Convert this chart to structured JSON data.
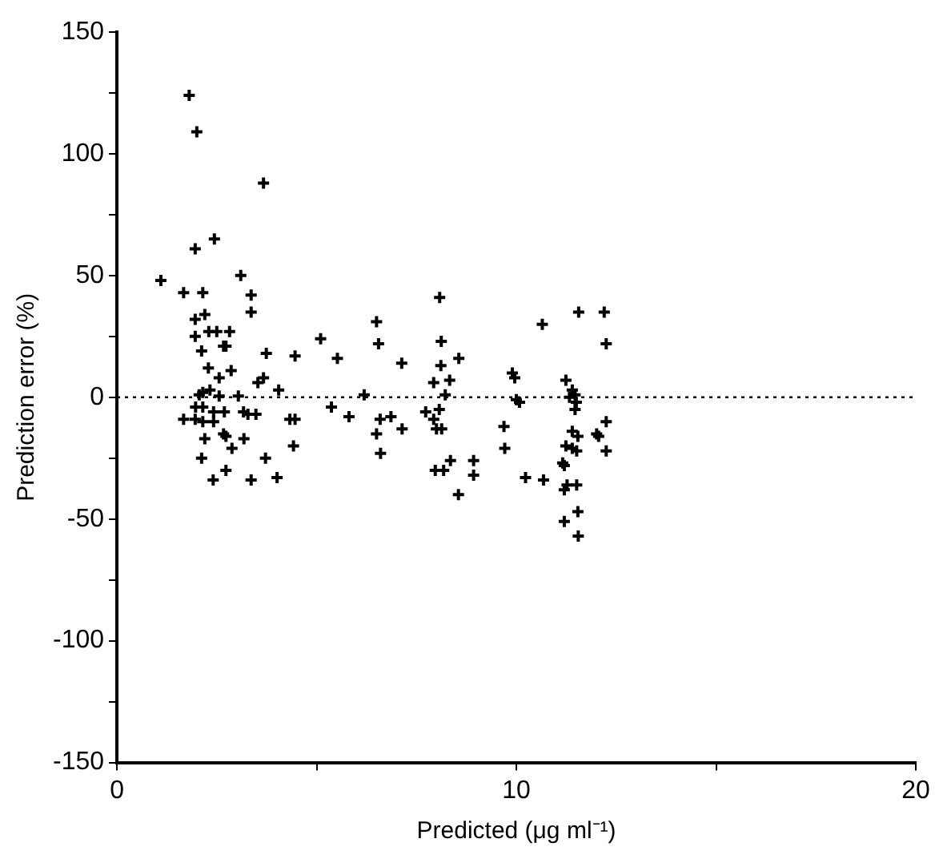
{
  "chart_data": {
    "type": "scatter",
    "xlabel": "Predicted (μg ml⁻¹)",
    "ylabel": "Prediction error (%)",
    "xlim": [
      0,
      20
    ],
    "xticks": [
      0,
      {
        "value": 5,
        "label": null
      },
      10,
      {
        "value": 15,
        "label": null
      },
      20
    ],
    "ylim": [
      -150,
      150
    ],
    "yticks": [
      -150,
      {
        "value": -125,
        "label": null
      },
      -100,
      {
        "value": -75,
        "label": null
      },
      -50,
      {
        "value": -25,
        "label": null
      },
      0,
      {
        "value": 25,
        "label": null
      },
      50,
      {
        "value": 75,
        "label": null
      },
      100,
      {
        "value": 125,
        "label": null
      },
      150
    ],
    "grid": false,
    "legend": false,
    "marker": "cross",
    "ref_lines": [
      {
        "axis": "y",
        "value": 0,
        "line_style": "dotted",
        "color": "#000000"
      }
    ],
    "series": [
      {
        "color": "#000000",
        "x": [
          1.81,
          2.0,
          3.67,
          2.44,
          1.96,
          3.1,
          1.1,
          1.67,
          2.15,
          3.36,
          3.36,
          1.96,
          2.2,
          2.3,
          2.5,
          2.82,
          1.96,
          2.73,
          2.67,
          2.12,
          3.74,
          4.46,
          5.1,
          5.52,
          6.5,
          6.55,
          7.13,
          2.29,
          2.86,
          2.56,
          3.67,
          3.53,
          4.05,
          2.15,
          2.33,
          2.06,
          2.56,
          3.04,
          6.19,
          1.67,
          1.97,
          2.15,
          1.96,
          2.15,
          2.42,
          2.42,
          2.69,
          3.17,
          3.28,
          3.48,
          4.33,
          4.46,
          5.37,
          5.81,
          6.59,
          6.86,
          7.14,
          6.5,
          6.6,
          2.2,
          2.67,
          2.73,
          3.18,
          4.42,
          2.88,
          3.72,
          2.12,
          2.73,
          4.01,
          2.41,
          3.36,
          8.08,
          8.12,
          8.11,
          8.56,
          7.93,
          8.33,
          8.22,
          7.73,
          8.07,
          7.93,
          8.0,
          8.13,
          7.97,
          8.18,
          8.35,
          8.93,
          8.93,
          8.55,
          9.69,
          9.71,
          9.9,
          9.96,
          10.0,
          10.08,
          10.65,
          10.23,
          10.68,
          11.56,
          12.2,
          12.25,
          11.24,
          11.4,
          11.47,
          11.33,
          11.5,
          11.47,
          12.25,
          11.4,
          11.54,
          12.01,
          12.06,
          11.24,
          11.4,
          11.51,
          12.25,
          11.16,
          11.2,
          11.27,
          11.51,
          11.2,
          11.2,
          11.54,
          11.55
        ],
        "values": [
          124,
          109,
          88,
          65,
          61,
          50,
          48,
          43,
          43,
          42,
          35,
          32,
          34,
          27,
          27,
          27,
          25,
          21,
          21,
          19,
          18,
          17,
          24,
          16,
          31,
          22,
          14,
          12,
          11,
          8,
          8,
          6,
          3,
          2,
          3,
          1,
          0.5,
          0.5,
          1,
          -9,
          -4,
          -4,
          -9,
          -10,
          -6,
          -10,
          -6,
          -6,
          -7,
          -7,
          -9,
          -9,
          -4,
          -8,
          -9,
          -8,
          -13,
          -15,
          -23,
          -17,
          -15,
          -16,
          -17,
          -20,
          -21,
          -25,
          -25,
          -30,
          -33,
          -34,
          -34,
          41,
          23,
          13,
          16,
          6,
          7,
          1,
          -6,
          -5,
          -9,
          -13,
          -13,
          -30,
          -30,
          -26,
          -26,
          -32,
          -40,
          -12,
          -21,
          10,
          8,
          -1,
          -2,
          30,
          -33,
          -34,
          35,
          35,
          22,
          7,
          3,
          1,
          0,
          -2,
          -5,
          -10,
          -14,
          -16,
          -15,
          -16,
          -20,
          -21,
          -22,
          -22,
          -27,
          -28,
          -36,
          -36,
          -38,
          -51,
          -47,
          -57
        ]
      }
    ]
  }
}
